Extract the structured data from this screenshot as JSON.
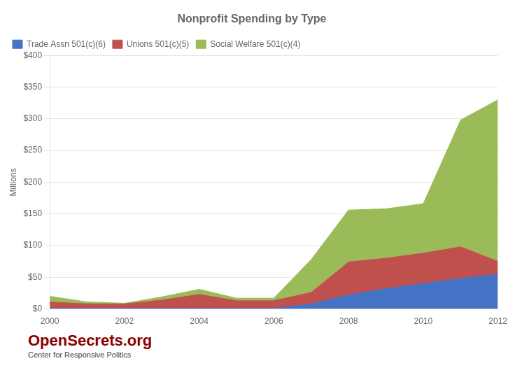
{
  "chart_data": {
    "type": "area",
    "title": "Nonprofit Spending by Type",
    "ylabel": "Millions",
    "x": [
      2000,
      2001,
      2002,
      2003,
      2004,
      2005,
      2006,
      2007,
      2008,
      2009,
      2010,
      2011,
      2012
    ],
    "series": [
      {
        "name": "Trade Assn 501(c)(6)",
        "color": "#4472C4",
        "values": [
          1,
          1,
          1,
          1,
          1,
          1,
          1,
          8,
          22,
          32,
          40,
          48,
          55
        ]
      },
      {
        "name": "Unions 501(c)(5)",
        "color": "#C0504D",
        "values": [
          10,
          7,
          7,
          13,
          22,
          12,
          12,
          18,
          52,
          48,
          48,
          50,
          20
        ]
      },
      {
        "name": "Social Welfare 501(c)(4)",
        "color": "#9BBB59",
        "values": [
          9,
          3,
          1,
          5,
          8,
          4,
          4,
          52,
          82,
          78,
          78,
          200,
          255
        ]
      }
    ],
    "stacked": true,
    "xlim": [
      2000,
      2012
    ],
    "xticks": [
      2000,
      2002,
      2004,
      2006,
      2008,
      2010,
      2012
    ],
    "ylim": [
      0,
      400
    ],
    "yticks": [
      {
        "value": 0,
        "label": "$0"
      },
      {
        "value": 50,
        "label": "$50"
      },
      {
        "value": 100,
        "label": "$100"
      },
      {
        "value": 150,
        "label": "$150"
      },
      {
        "value": 200,
        "label": "$200"
      },
      {
        "value": 250,
        "label": "$250"
      },
      {
        "value": 300,
        "label": "$300"
      },
      {
        "value": 350,
        "label": "$350"
      },
      {
        "value": 400,
        "label": "$400"
      }
    ],
    "grid": "y",
    "legend": "upper left",
    "annotations": [
      "OpenSecrets.org",
      "Center for Responsive Politics"
    ]
  }
}
